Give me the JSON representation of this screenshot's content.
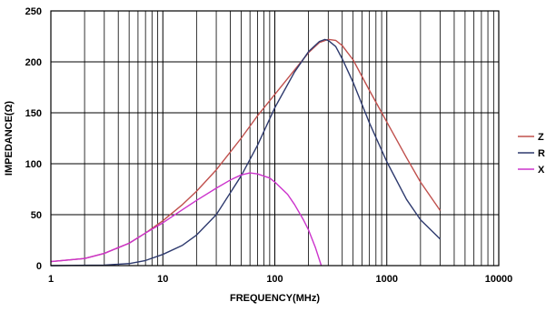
{
  "chart_data": {
    "type": "line",
    "xlabel": "FREQUENCY(MHz)",
    "ylabel": "IMPEDANCE(Ω)",
    "xscale": "log",
    "xlim": [
      1,
      10000
    ],
    "ylim": [
      0,
      250
    ],
    "xticks": [
      1,
      10,
      100,
      1000,
      10000
    ],
    "xtick_labels": [
      "1",
      "10",
      "100",
      "1000",
      "10000"
    ],
    "yticks": [
      0,
      50,
      100,
      150,
      200,
      250
    ],
    "ytick_labels": [
      "0",
      "50",
      "100",
      "150",
      "200",
      "250"
    ],
    "grid": true,
    "legend_position": "right",
    "series": [
      {
        "name": "Z",
        "color": "#c0504d",
        "points": [
          [
            1,
            4
          ],
          [
            2,
            7
          ],
          [
            3,
            12
          ],
          [
            5,
            22
          ],
          [
            7,
            32
          ],
          [
            10,
            44
          ],
          [
            15,
            60
          ],
          [
            20,
            73
          ],
          [
            30,
            94
          ],
          [
            50,
            125
          ],
          [
            70,
            147
          ],
          [
            100,
            168
          ],
          [
            150,
            192
          ],
          [
            200,
            209
          ],
          [
            250,
            219
          ],
          [
            300,
            222
          ],
          [
            350,
            221
          ],
          [
            400,
            216
          ],
          [
            500,
            202
          ],
          [
            700,
            172
          ],
          [
            1000,
            141
          ],
          [
            1500,
            106
          ],
          [
            2000,
            82
          ],
          [
            3000,
            54
          ]
        ]
      },
      {
        "name": "R",
        "color": "#2e3a6e",
        "points": [
          [
            1,
            0
          ],
          [
            3,
            0.5
          ],
          [
            5,
            2
          ],
          [
            7,
            5
          ],
          [
            10,
            11
          ],
          [
            15,
            20
          ],
          [
            20,
            30
          ],
          [
            30,
            50
          ],
          [
            50,
            88
          ],
          [
            70,
            118
          ],
          [
            100,
            155
          ],
          [
            150,
            190
          ],
          [
            200,
            210
          ],
          [
            250,
            220
          ],
          [
            280,
            222
          ],
          [
            300,
            221
          ],
          [
            350,
            215
          ],
          [
            400,
            203
          ],
          [
            500,
            180
          ],
          [
            700,
            140
          ],
          [
            1000,
            102
          ],
          [
            1500,
            65
          ],
          [
            2000,
            45
          ],
          [
            3000,
            26
          ]
        ]
      },
      {
        "name": "X",
        "color": "#cc33cc",
        "points": [
          [
            1,
            4
          ],
          [
            2,
            7
          ],
          [
            3,
            12
          ],
          [
            5,
            22
          ],
          [
            7,
            32
          ],
          [
            10,
            42
          ],
          [
            15,
            55
          ],
          [
            20,
            64
          ],
          [
            30,
            76
          ],
          [
            40,
            84
          ],
          [
            50,
            89
          ],
          [
            60,
            91
          ],
          [
            70,
            90
          ],
          [
            90,
            86
          ],
          [
            100,
            82
          ],
          [
            130,
            70
          ],
          [
            150,
            60
          ],
          [
            180,
            45
          ],
          [
            200,
            35
          ],
          [
            230,
            18
          ],
          [
            260,
            0
          ]
        ]
      }
    ]
  }
}
